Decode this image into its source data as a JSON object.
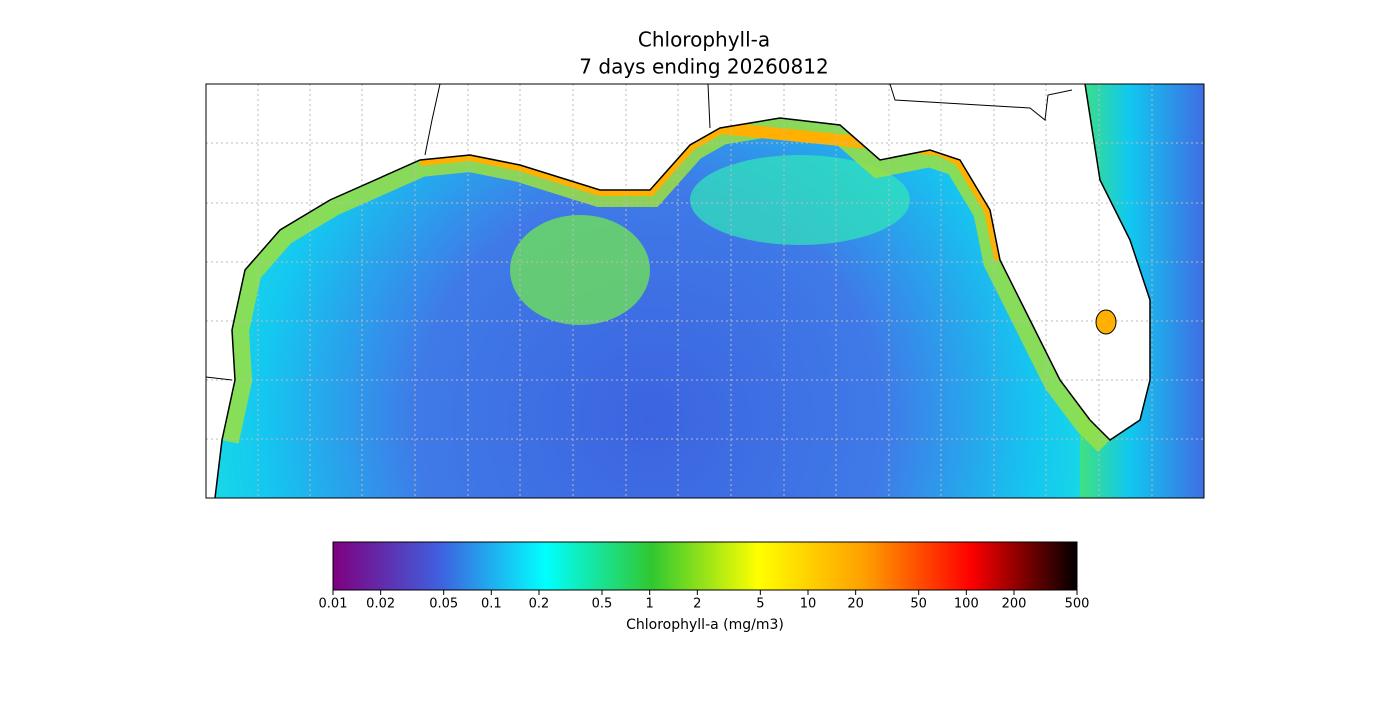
{
  "title": "Chlorophyll-a",
  "subtitle": "7 days ending 20260812",
  "colorbar": {
    "label": "Chlorophyll-a (mg/m3)",
    "scale": "log",
    "lim": [
      0.01,
      500
    ],
    "ticks": [
      0.01,
      0.02,
      0.05,
      0.1,
      0.2,
      0.5,
      1,
      2,
      5,
      10,
      20,
      50,
      100,
      200,
      500
    ],
    "colors": [
      "#7f007f",
      "#3f5fdf",
      "#00ffff",
      "#30c830",
      "#ffff00",
      "#ff9f00",
      "#ff0000",
      "#000000"
    ]
  }
}
